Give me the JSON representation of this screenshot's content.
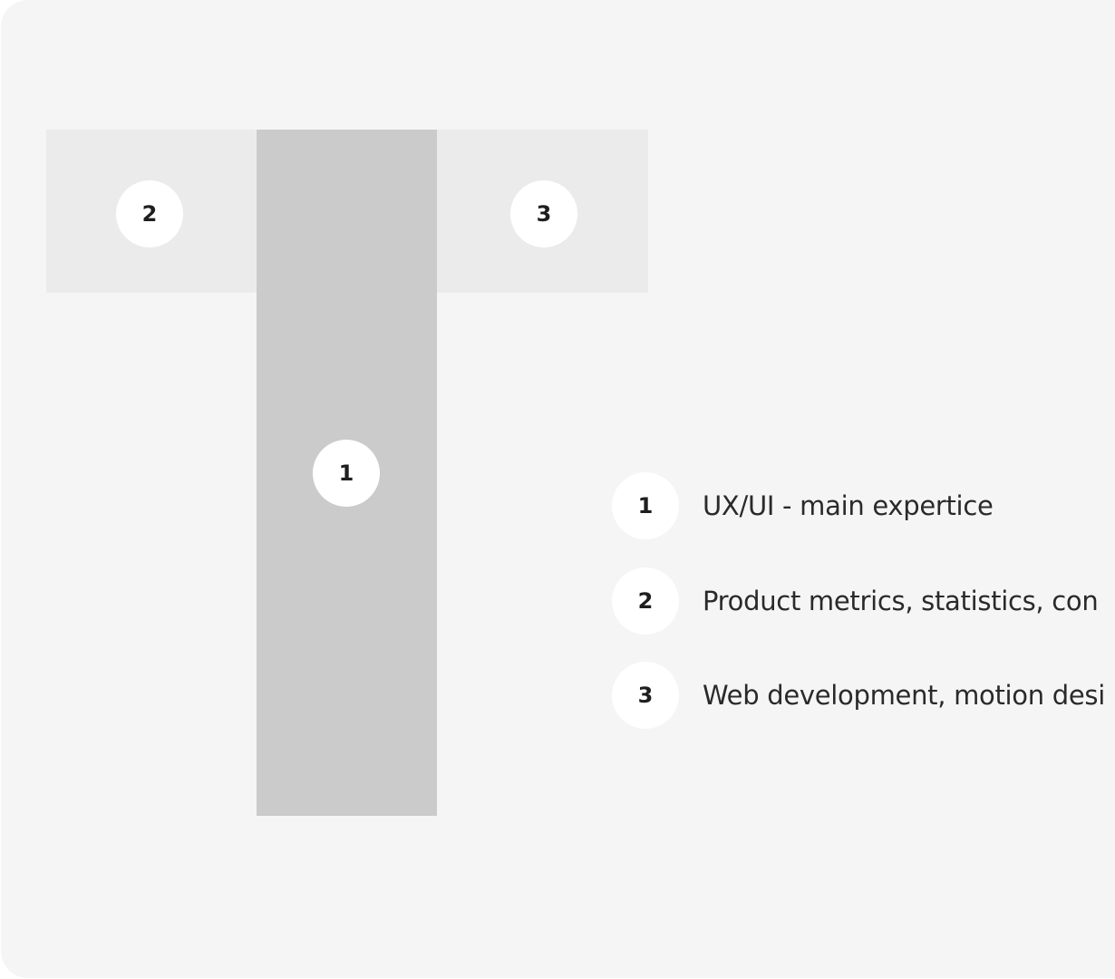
{
  "diagram": {
    "segments": {
      "stem": {
        "number": "1"
      },
      "left_arm": {
        "number": "2"
      },
      "right_arm": {
        "number": "3"
      }
    },
    "legend": [
      {
        "number": "1",
        "text": "UX/UI - main expertice"
      },
      {
        "number": "2",
        "text": "Product metrics, statistics, con"
      },
      {
        "number": "3",
        "text": "Web development, motion desi"
      }
    ]
  },
  "colors": {
    "background": "#f5f5f5",
    "arm_fill": "#ebebeb",
    "stem_fill": "#cbcbcb",
    "badge_fill": "#ffffff",
    "text": "#2a2a2a"
  }
}
